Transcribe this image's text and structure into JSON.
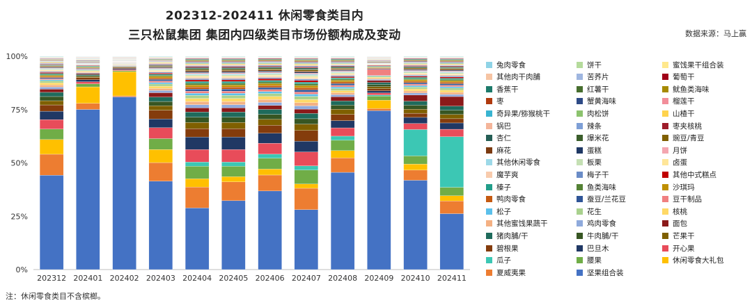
{
  "title_line1": "202312-202411 休闲零食类目内",
  "title_line2": "三只松鼠集团 集团内四级类目市场份额构成及变动",
  "source": "数据来源：马上赢",
  "note": "注：休闲零食类目不含槟榔。",
  "chart_data": {
    "type": "bar",
    "stacked": true,
    "title": "202312-202411 休闲零食类目内 三只松鼠集团 集团内四级类目市场份额构成及变动",
    "xlabel": "",
    "ylabel": "",
    "ylim": [
      0,
      100
    ],
    "yticks": [
      "0%",
      "25%",
      "50%",
      "75%",
      "100%"
    ],
    "categories": [
      "202312",
      "202401",
      "202402",
      "202403",
      "202404",
      "202405",
      "202406",
      "202407",
      "202408",
      "202409",
      "202410",
      "202411"
    ],
    "legend_columns": 3,
    "series": [
      {
        "name": "坚果组合装",
        "color": "#4472C4",
        "values": [
          45,
          78,
          82,
          40.5,
          29.5,
          33,
          39.5,
          28,
          47,
          76,
          44,
          26.5
        ]
      },
      {
        "name": "夏威夷果",
        "color": "#ED7D31",
        "values": [
          10,
          3,
          0.5,
          8.5,
          10,
          9,
          8,
          10,
          7,
          1,
          5,
          6
        ]
      },
      {
        "name": "休闲零食大礼包",
        "color": "#FFC000",
        "values": [
          7,
          8,
          11.5,
          6,
          4,
          2.5,
          3,
          2,
          3.5,
          4,
          3,
          2.5
        ]
      },
      {
        "name": "腰果",
        "color": "#70AD47",
        "values": [
          5,
          1.5,
          0.5,
          5,
          6,
          5,
          5.5,
          6.5,
          5,
          2,
          4,
          4
        ]
      },
      {
        "name": "瓜子",
        "color": "#3CC7B4",
        "values": [
          0,
          0,
          0,
          0,
          2,
          2,
          2,
          2,
          2,
          0.5,
          13,
          24
        ]
      },
      {
        "name": "开心果",
        "color": "#E84C5A",
        "values": [
          4.5,
          1,
          0.5,
          5,
          6,
          6,
          5.5,
          6.5,
          4,
          1,
          3,
          3.5
        ]
      },
      {
        "name": "巴旦木",
        "color": "#203864",
        "values": [
          4,
          1,
          0.5,
          4,
          6,
          6,
          5,
          5,
          3.5,
          1,
          3,
          3
        ]
      },
      {
        "name": "碧根果",
        "color": "#843C0C",
        "values": [
          3,
          1,
          0.5,
          4,
          4,
          4,
          4,
          5,
          3,
          1,
          2,
          2
        ]
      },
      {
        "name": "芒果干",
        "color": "#7F6000",
        "values": [
          2,
          0.5,
          0.2,
          2,
          3,
          3,
          3,
          3,
          2.5,
          1,
          2,
          2
        ]
      },
      {
        "name": "牛肉脯/干",
        "color": "#375623",
        "values": [
          2,
          0.5,
          0.2,
          2,
          2.5,
          2.5,
          2.5,
          2.5,
          2,
          1,
          2,
          2
        ]
      },
      {
        "name": "猪肉脯/干",
        "color": "#1F6B5C",
        "values": [
          2,
          0.5,
          0.2,
          2,
          2.5,
          2.5,
          2.5,
          2.5,
          2,
          1,
          2,
          2
        ]
      },
      {
        "name": "面包",
        "color": "#8B1A1A",
        "values": [
          1.5,
          0.5,
          0.2,
          2,
          2,
          2,
          2,
          2,
          2,
          1,
          3,
          4.5
        ]
      },
      {
        "name": "鸡肉零食",
        "color": "#8FAADC",
        "values": [
          1,
          0.4,
          0.2,
          1,
          1.5,
          1.5,
          1.5,
          1.5,
          1,
          0.5,
          1,
          1
        ]
      },
      {
        "name": "其他蜜饯果蔬干",
        "color": "#F4B183",
        "values": [
          1,
          0.4,
          0.2,
          1,
          1.5,
          1.5,
          1.5,
          1.5,
          1,
          0.5,
          1,
          1
        ]
      },
      {
        "name": "核桃",
        "color": "#FFD966",
        "values": [
          1,
          0.4,
          0.2,
          1,
          1.5,
          1.5,
          1.5,
          1.5,
          1,
          0.5,
          1,
          1
        ]
      },
      {
        "name": "花生",
        "color": "#A9D18E",
        "values": [
          1,
          0.4,
          0.2,
          1,
          1.5,
          1.5,
          1.5,
          1.5,
          1,
          0.5,
          1,
          1
        ]
      },
      {
        "name": "松子",
        "color": "#5BC0EB",
        "values": [
          0.5,
          0.3,
          0.1,
          0.7,
          1,
          1,
          1,
          1,
          0.8,
          0.3,
          0.7,
          0.7
        ]
      },
      {
        "name": "豆干制品",
        "color": "#F08080",
        "values": [
          0.5,
          0.3,
          0.1,
          0.7,
          1,
          1,
          1,
          1,
          0.8,
          3,
          0.7,
          0.7
        ]
      },
      {
        "name": "蚕豆/兰花豆",
        "color": "#2F5597",
        "values": [
          0.5,
          0.3,
          0.1,
          0.7,
          1,
          1,
          1,
          1,
          0.8,
          0.3,
          0.7,
          0.7
        ]
      },
      {
        "name": "鸭肉零食",
        "color": "#C55A11",
        "values": [
          0.5,
          0.3,
          0.1,
          0.7,
          1,
          1,
          1,
          1,
          0.8,
          0.3,
          0.7,
          0.7
        ]
      },
      {
        "name": "沙琪玛",
        "color": "#BF9000",
        "values": [
          0.5,
          0.3,
          0.1,
          0.7,
          1,
          1,
          1,
          1,
          0.8,
          0.3,
          0.7,
          0.7
        ]
      },
      {
        "name": "鱼类海味",
        "color": "#548235",
        "values": [
          0.5,
          0.3,
          0.1,
          0.5,
          0.8,
          0.8,
          0.8,
          0.8,
          0.6,
          0.3,
          0.6,
          0.6
        ]
      },
      {
        "name": "榛子",
        "color": "#229E8A",
        "values": [
          0.5,
          0.3,
          0.1,
          0.5,
          0.8,
          0.8,
          0.8,
          0.8,
          0.6,
          0.3,
          0.6,
          0.6
        ]
      },
      {
        "name": "其他中式糕点",
        "color": "#C00000",
        "values": [
          0.5,
          0.3,
          0.1,
          0.5,
          0.8,
          0.8,
          0.8,
          0.8,
          0.6,
          0.3,
          0.6,
          0.6
        ]
      },
      {
        "name": "梅子干",
        "color": "#6A8CC7",
        "values": [
          0.4,
          0.2,
          0.1,
          0.4,
          0.6,
          0.6,
          0.6,
          0.6,
          0.5,
          0.2,
          0.5,
          0.5
        ]
      },
      {
        "name": "魔芋爽",
        "color": "#F8CBAD",
        "values": [
          0.4,
          0.2,
          0.1,
          0.4,
          0.6,
          0.6,
          0.6,
          0.6,
          0.5,
          0.2,
          0.5,
          0.5
        ]
      },
      {
        "name": "卤蛋",
        "color": "#FFE699",
        "values": [
          0.4,
          0.2,
          0.1,
          0.4,
          0.6,
          0.6,
          0.6,
          0.6,
          0.5,
          0.2,
          0.5,
          0.5
        ]
      },
      {
        "name": "板栗",
        "color": "#C5E0B4",
        "values": [
          0.4,
          0.2,
          0.1,
          0.4,
          0.6,
          0.6,
          0.6,
          0.6,
          0.5,
          0.2,
          0.5,
          0.5
        ]
      },
      {
        "name": "其他休闲零食",
        "color": "#9DD9E8",
        "values": [
          0.3,
          0.2,
          0.1,
          0.3,
          0.5,
          0.5,
          0.5,
          0.5,
          0.4,
          0.2,
          0.4,
          0.4
        ]
      },
      {
        "name": "月饼",
        "color": "#F4A6B0",
        "values": [
          0.3,
          0.2,
          0.1,
          0.3,
          0.5,
          0.5,
          0.5,
          0.5,
          0.4,
          0.2,
          0.4,
          0.4
        ]
      },
      {
        "name": "蛋糕",
        "color": "#1F3864",
        "values": [
          0.3,
          0.2,
          0.1,
          0.3,
          0.5,
          0.5,
          0.5,
          0.5,
          0.4,
          0.2,
          0.4,
          0.4
        ]
      },
      {
        "name": "麻花",
        "color": "#7B3A10",
        "values": [
          0.3,
          0.2,
          0.1,
          0.3,
          0.5,
          0.5,
          0.5,
          0.5,
          0.4,
          0.2,
          0.4,
          0.4
        ]
      },
      {
        "name": "豌豆/青豆",
        "color": "#806000",
        "values": [
          0.3,
          0.2,
          0.1,
          0.3,
          0.5,
          0.5,
          0.5,
          0.5,
          0.4,
          0.2,
          0.4,
          0.4
        ]
      },
      {
        "name": "爆米花",
        "color": "#3B5E2B",
        "values": [
          0.3,
          0.2,
          0.1,
          0.3,
          0.5,
          0.5,
          0.5,
          0.5,
          0.4,
          0.2,
          0.4,
          0.4
        ]
      },
      {
        "name": "杏仁",
        "color": "#255E55",
        "values": [
          0.3,
          0.2,
          0.1,
          0.3,
          0.5,
          0.5,
          0.5,
          0.5,
          0.4,
          0.2,
          0.4,
          0.4
        ]
      },
      {
        "name": "枣夹核桃",
        "color": "#9E1C2A",
        "values": [
          0.3,
          0.2,
          0.1,
          0.3,
          0.5,
          0.5,
          0.5,
          0.5,
          0.4,
          0.2,
          0.4,
          0.4
        ]
      },
      {
        "name": "辣条",
        "color": "#7E9FD6",
        "values": [
          0.3,
          0.2,
          0.1,
          0.3,
          0.4,
          0.4,
          0.4,
          0.4,
          0.3,
          0.2,
          0.3,
          0.3
        ]
      },
      {
        "name": "锅巴",
        "color": "#F4B59A",
        "values": [
          0.3,
          0.2,
          0.1,
          0.3,
          0.4,
          0.4,
          0.4,
          0.4,
          0.3,
          0.2,
          0.3,
          0.3
        ]
      },
      {
        "name": "山楂干",
        "color": "#FFD34D",
        "values": [
          0.3,
          0.2,
          0.1,
          0.3,
          0.4,
          0.4,
          0.4,
          0.4,
          0.3,
          0.2,
          0.3,
          0.3
        ]
      },
      {
        "name": "肉松饼",
        "color": "#8CC36E",
        "values": [
          0.2,
          0.1,
          0.1,
          0.2,
          0.3,
          0.3,
          0.3,
          0.3,
          0.3,
          0.1,
          0.3,
          0.3
        ]
      },
      {
        "name": "奇异果/猕猴桃干",
        "color": "#39B4D1",
        "values": [
          0.2,
          0.1,
          0.1,
          0.2,
          0.3,
          0.3,
          0.3,
          0.3,
          0.3,
          0.1,
          0.3,
          0.3
        ]
      },
      {
        "name": "榴莲干",
        "color": "#F28E9A",
        "values": [
          0.2,
          0.1,
          0.1,
          0.2,
          0.3,
          0.3,
          0.3,
          0.3,
          0.3,
          0.1,
          0.3,
          0.3
        ]
      },
      {
        "name": "蟹黄海味",
        "color": "#2E4A86",
        "values": [
          0.2,
          0.1,
          0.1,
          0.2,
          0.3,
          0.3,
          0.3,
          0.3,
          0.3,
          0.1,
          0.3,
          0.3
        ]
      },
      {
        "name": "枣",
        "color": "#B03A0E",
        "values": [
          0.2,
          0.1,
          0.1,
          0.2,
          0.3,
          0.3,
          0.3,
          0.3,
          0.3,
          0.1,
          0.3,
          0.3
        ]
      },
      {
        "name": "鱿鱼类海味",
        "color": "#A68A00",
        "values": [
          0.2,
          0.1,
          0.1,
          0.2,
          0.3,
          0.3,
          0.3,
          0.3,
          0.3,
          0.1,
          0.3,
          0.3
        ]
      },
      {
        "name": "红薯干",
        "color": "#476E2E",
        "values": [
          0.2,
          0.1,
          0.1,
          0.2,
          0.3,
          0.3,
          0.3,
          0.3,
          0.3,
          0.1,
          0.3,
          0.3
        ]
      },
      {
        "name": "香蕉干",
        "color": "#1C7A6A",
        "values": [
          0.2,
          0.1,
          0.1,
          0.2,
          0.3,
          0.3,
          0.3,
          0.3,
          0.3,
          0.1,
          0.3,
          0.3
        ]
      },
      {
        "name": "葡萄干",
        "color": "#A00018",
        "values": [
          0.2,
          0.1,
          0.1,
          0.2,
          0.3,
          0.3,
          0.3,
          0.3,
          0.3,
          0.1,
          0.3,
          0.3
        ]
      },
      {
        "name": "苦荞片",
        "color": "#9FB6E0",
        "values": [
          0.2,
          0.1,
          0.1,
          0.2,
          0.2,
          0.2,
          0.2,
          0.2,
          0.2,
          0.1,
          0.2,
          0.2
        ]
      },
      {
        "name": "其他肉干肉脯",
        "color": "#F6C4A3",
        "values": [
          0.2,
          0.1,
          0.1,
          0.2,
          0.2,
          0.2,
          0.2,
          0.2,
          0.2,
          0.1,
          0.2,
          0.2
        ]
      },
      {
        "name": "蜜饯果干组合装",
        "color": "#FFE88C",
        "values": [
          0.2,
          0.1,
          0.1,
          0.2,
          0.2,
          0.2,
          0.2,
          0.2,
          0.2,
          0.1,
          0.2,
          0.2
        ]
      },
      {
        "name": "饼干",
        "color": "#B5DB9C",
        "values": [
          0.2,
          0.1,
          0.1,
          0.2,
          0.2,
          0.2,
          0.2,
          0.2,
          0.2,
          0.1,
          0.2,
          0.2
        ]
      },
      {
        "name": "兔肉零食",
        "color": "#8FD3E6",
        "values": [
          0.2,
          0.1,
          0.1,
          0.2,
          0.2,
          0.2,
          0.2,
          0.2,
          0.2,
          0.1,
          0.2,
          0.2
        ]
      }
    ]
  }
}
